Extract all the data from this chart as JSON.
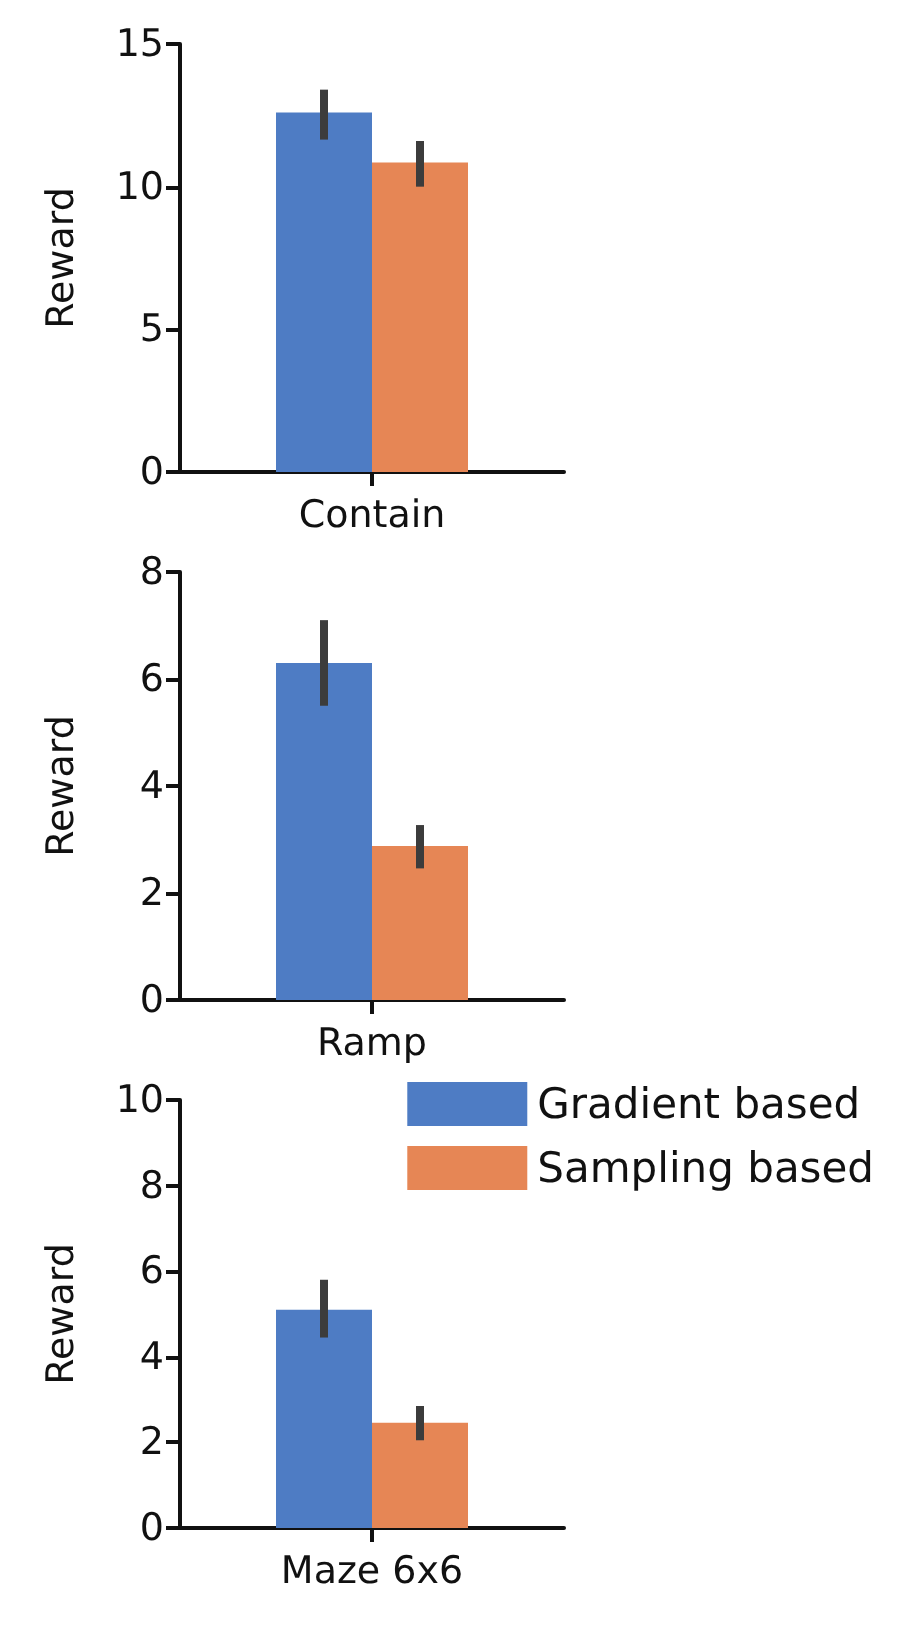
{
  "chart_data": [
    {
      "type": "bar",
      "categories": [
        "Contain"
      ],
      "ylabel": "Reward",
      "ylim": [
        0,
        15
      ],
      "yticks": [
        0,
        5,
        10,
        15
      ],
      "grid": false,
      "legend": false,
      "series": [
        {
          "color": "#4e7cc4",
          "values": [
            12.6
          ],
          "errors": [
            [
              11.65,
              13.4
            ]
          ]
        },
        {
          "color": "#e68655",
          "values": [
            10.85
          ],
          "errors": [
            [
              10.0,
              11.6
            ]
          ]
        }
      ]
    },
    {
      "type": "bar",
      "categories": [
        "Ramp"
      ],
      "ylabel": "Reward",
      "ylim": [
        0,
        8
      ],
      "yticks": [
        0,
        2,
        4,
        6,
        8
      ],
      "grid": false,
      "legend": false,
      "series": [
        {
          "color": "#4e7cc4",
          "values": [
            6.3
          ],
          "errors": [
            [
              5.5,
              7.1
            ]
          ]
        },
        {
          "color": "#e68655",
          "values": [
            2.88
          ],
          "errors": [
            [
              2.46,
              3.27
            ]
          ]
        }
      ]
    },
    {
      "type": "bar",
      "categories": [
        "Maze 6x6"
      ],
      "ylabel": "Reward",
      "ylim": [
        0,
        10
      ],
      "yticks": [
        0,
        2,
        4,
        6,
        8,
        10
      ],
      "grid": false,
      "legend": "top right",
      "series": [
        {
          "name": "Gradient based",
          "color": "#4e7cc4",
          "values": [
            5.1
          ],
          "errors": [
            [
              4.45,
              5.8
            ]
          ]
        },
        {
          "name": "Sampling based",
          "color": "#e68655",
          "values": [
            2.46
          ],
          "errors": [
            [
              2.05,
              2.85
            ]
          ]
        }
      ]
    }
  ]
}
